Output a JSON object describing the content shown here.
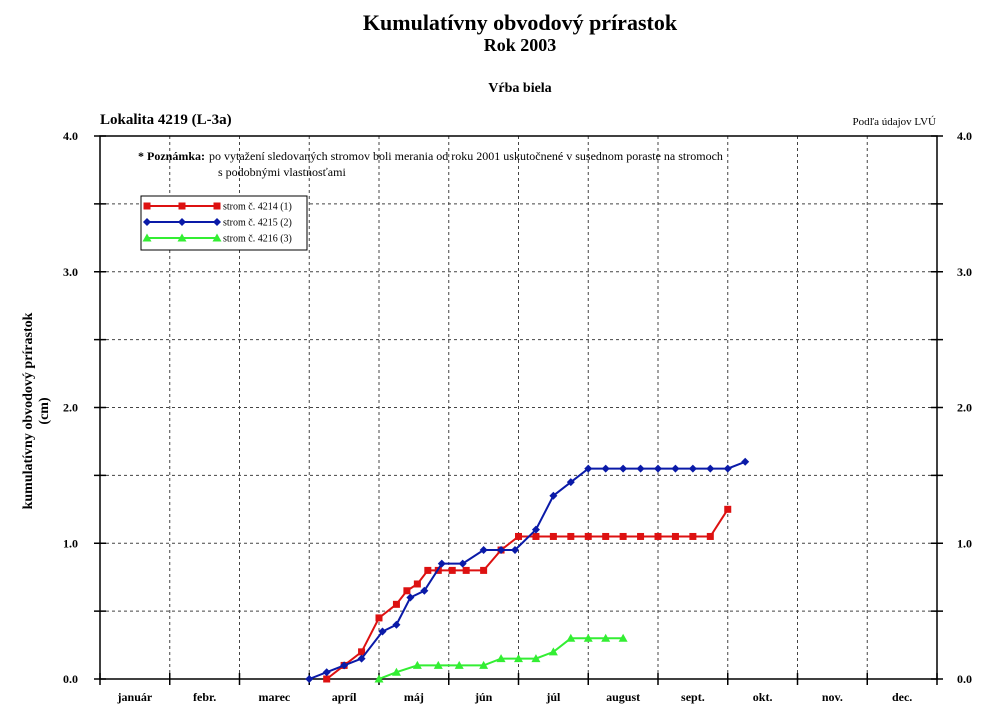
{
  "chart_data": {
    "type": "line",
    "title": "Kumulatívny obvodový prírastok",
    "subtitle": "Rok 2003",
    "species": "Vŕba biela",
    "location": "Lokalita 4219 (L-3a)",
    "source": "Podľa údajov LVÚ",
    "note_label": "* Poznámka:",
    "note_line1": "po vytažení sledovaných stromov boli merania od roku 2001 uskutočnené v susednom poraste na stromoch",
    "note_line2": "s podobnými vlastnosťami",
    "ylabel_line1": "kumulatívny obvodový prírastok",
    "ylabel_line2": "(cm)",
    "ylim": [
      0,
      4.0
    ],
    "xlim": [
      0,
      12
    ],
    "y_ticks": [
      "0.0",
      "1.0",
      "2.0",
      "3.0",
      "4.0"
    ],
    "categories": [
      "január",
      "febr.",
      "marec",
      "apríl",
      "máj",
      "jún",
      "júl",
      "august",
      "sept.",
      "okt.",
      "nov.",
      "dec."
    ],
    "grid": true,
    "legend_position": "top-left",
    "series": [
      {
        "name": "strom č. 4214 (1)",
        "color": "#dd1111",
        "marker": "square",
        "x": [
          3.25,
          3.5,
          3.75,
          4.0,
          4.25,
          4.4,
          4.55,
          4.7,
          4.85,
          5.05,
          5.25,
          5.5,
          5.75,
          6.0,
          6.25,
          6.5,
          6.75,
          7.0,
          7.25,
          7.5,
          7.75,
          8.0,
          8.25,
          8.5,
          8.75,
          9.0
        ],
        "y": [
          0.0,
          0.1,
          0.2,
          0.45,
          0.55,
          0.65,
          0.7,
          0.8,
          0.8,
          0.8,
          0.8,
          0.8,
          0.95,
          1.05,
          1.05,
          1.05,
          1.05,
          1.05,
          1.05,
          1.05,
          1.05,
          1.05,
          1.05,
          1.05,
          1.05,
          1.25
        ]
      },
      {
        "name": "strom č. 4215 (2)",
        "color": "#0a1aa8",
        "marker": "diamond",
        "x": [
          3.0,
          3.25,
          3.5,
          3.75,
          4.05,
          4.25,
          4.45,
          4.65,
          4.9,
          5.2,
          5.5,
          5.75,
          5.95,
          6.25,
          6.5,
          6.75,
          7.0,
          7.25,
          7.5,
          7.75,
          8.0,
          8.25,
          8.5,
          8.75,
          9.0,
          9.25
        ],
        "y": [
          0.0,
          0.05,
          0.1,
          0.15,
          0.35,
          0.4,
          0.6,
          0.65,
          0.85,
          0.85,
          0.95,
          0.95,
          0.95,
          1.1,
          1.35,
          1.45,
          1.55,
          1.55,
          1.55,
          1.55,
          1.55,
          1.55,
          1.55,
          1.55,
          1.55,
          1.6
        ]
      },
      {
        "name": "strom č. 4216 (3)",
        "color": "#33ee33",
        "marker": "triangle",
        "x": [
          4.0,
          4.25,
          4.55,
          4.85,
          5.15,
          5.5,
          5.75,
          6.0,
          6.25,
          6.5,
          6.75,
          7.0,
          7.25,
          7.5
        ],
        "y": [
          0.0,
          0.05,
          0.1,
          0.1,
          0.1,
          0.1,
          0.15,
          0.15,
          0.15,
          0.2,
          0.3,
          0.3,
          0.3,
          0.3
        ]
      }
    ]
  }
}
